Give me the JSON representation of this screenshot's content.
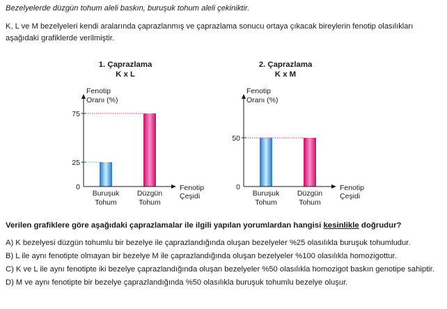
{
  "intro": "Bezelyelerde düzgün tohum aleli baskın, buruşuk tohum aleli çekiniktir.",
  "description": "K, L ve M bezelyeleri kendi aralarında çaprazlanmış ve çaprazlama sonucu ortaya çıkacak bireylerin fenotip olasılıkları aşağıdaki grafiklerde verilmiştir.",
  "chart_data": [
    {
      "type": "bar",
      "title": "1. Çaprazlama",
      "subtitle": "K x L",
      "ylabel_line1": "Fenotip",
      "ylabel_line2": "Oranı (%)",
      "xlabel_line1": "Fenotip",
      "xlabel_line2": "Çeşidi",
      "categories": [
        {
          "line1": "Buruşuk",
          "line2": "Tohum"
        },
        {
          "line1": "Düzgün",
          "line2": "Tohum"
        }
      ],
      "values": [
        25,
        75
      ],
      "y_ticks": [
        0,
        25,
        75
      ],
      "ylim": [
        0,
        100
      ],
      "colors": [
        "#4aa8e6",
        "#e2288a"
      ]
    },
    {
      "type": "bar",
      "title": "2. Çaprazlama",
      "subtitle": "K x M",
      "ylabel_line1": "Fenotip",
      "ylabel_line2": "Oranı (%)",
      "xlabel_line1": "Fenotip",
      "xlabel_line2": "Çeşidi",
      "categories": [
        {
          "line1": "Buruşuk",
          "line2": "Tohum"
        },
        {
          "line1": "Düzgün",
          "line2": "Tohum"
        }
      ],
      "values": [
        50,
        50
      ],
      "y_ticks": [
        0,
        50
      ],
      "ylim": [
        0,
        100
      ],
      "colors": [
        "#4aa8e6",
        "#e2288a"
      ]
    }
  ],
  "question": {
    "before": "Verilen grafiklere göre aşağıdaki çaprazlamalar ile ilgili yapılan yorumlardan hangisi ",
    "highlight": "kesinlikle",
    "after": " doğrudur?"
  },
  "options": [
    "A) K bezelyesi düzgün tohumlu bir bezelye ile çaprazlandığında oluşan bezelyeler %25 olasılıkla buruşuk tohumludur.",
    "B) L ile aynı fenotipte olmayan bir bezelye M ile çaprazlandığında oluşan bezelyeler %100 olasılıkla homozigottur.",
    "C) K ve L ile aynı fenotipte iki bezelye çaprazlandığında oluşan bezelyeler %50 olasılıkla homozigot baskın genotipe sahiptir.",
    "D) M ve aynı fenotipte bir bezelye çaprazlandığında %50 olasılıkla buruşuk tohumlu bezelye oluşur."
  ]
}
